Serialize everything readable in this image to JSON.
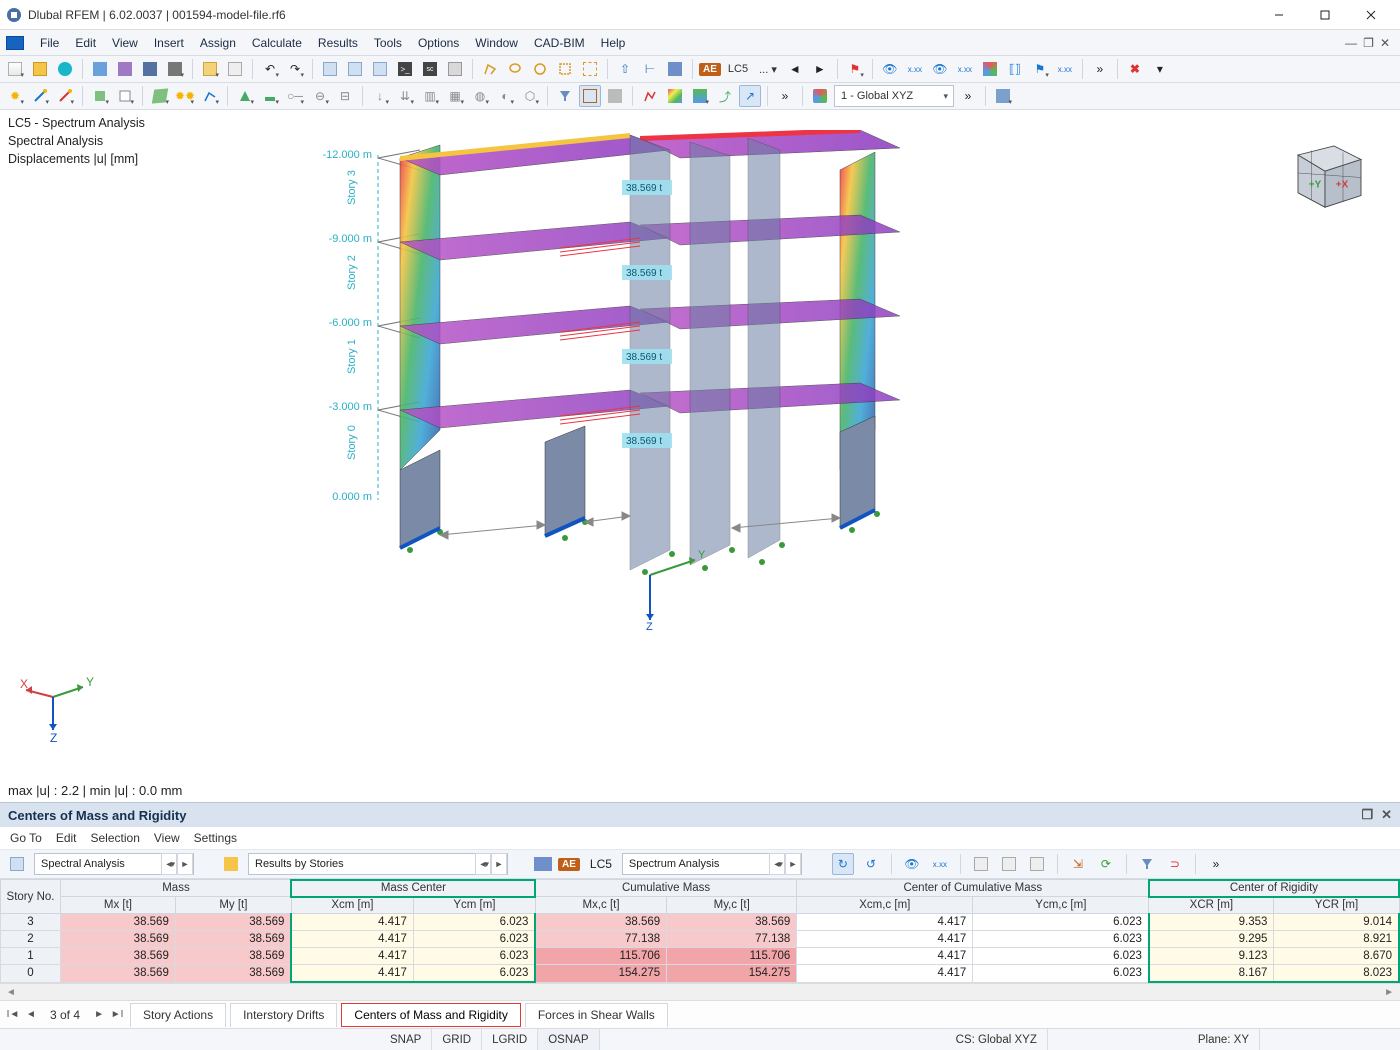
{
  "window": {
    "title": "Dlubal RFEM | 6.02.0037 | 001594-model-file.rf6"
  },
  "menu": [
    "File",
    "Edit",
    "View",
    "Insert",
    "Assign",
    "Calculate",
    "Results",
    "Tools",
    "Options",
    "Window",
    "CAD-BIM",
    "Help"
  ],
  "toolbar2_cs": "1 - Global XYZ",
  "lc_chip_ae": "AE",
  "lc_chip_label": "LC5",
  "lc_chip_dots": "... ▾",
  "viewport": {
    "line1": "LC5 - Spectrum Analysis",
    "line2": "Spectral Analysis",
    "line3": "Displacements |u| [mm]",
    "maxmin": "max |u| : 2.2 | min |u| : 0.0 mm",
    "z_levels": [
      "-12.000 m",
      "-9.000 m",
      "-6.000 m",
      "-3.000 m",
      "0.000 m"
    ],
    "story_labels": [
      "Story 3",
      "Story 2",
      "Story 1",
      "Story 0"
    ],
    "mass_tag": "38.569 t",
    "axis_labels": {
      "x": "X",
      "y": "Y",
      "z": "Z",
      "y2": "Y",
      "z2": "Z"
    },
    "cube_labels": {
      "y": "+Y",
      "x": "+X"
    }
  },
  "panel": {
    "title": "Centers of Mass and Rigidity",
    "menu": [
      "Go To",
      "Edit",
      "Selection",
      "View",
      "Settings"
    ],
    "select1": "Spectral Analysis",
    "select2": "Results by Stories",
    "lc_ae": "AE",
    "lc_label": "LC5",
    "lc_name": "Spectrum Analysis"
  },
  "table": {
    "group_headers": [
      "Story No.",
      "Mass",
      "Mass Center",
      "Cumulative Mass",
      "Center of Cumulative Mass",
      "Center of Rigidity"
    ],
    "sub_headers": [
      "",
      "Mx [t]",
      "My [t]",
      "Xcm [m]",
      "Ycm [m]",
      "Mx,c [t]",
      "My,c [t]",
      "Xcm,c [m]",
      "Ycm,c [m]",
      "XCR [m]",
      "YCR [m]"
    ],
    "rows": [
      {
        "no": "3",
        "mx": "38.569",
        "my": "38.569",
        "xcm": "4.417",
        "ycm": "6.023",
        "mxc": "38.569",
        "myc": "38.569",
        "xcmc": "4.417",
        "ycmc": "6.023",
        "xcr": "9.353",
        "ycr": "9.014"
      },
      {
        "no": "2",
        "mx": "38.569",
        "my": "38.569",
        "xcm": "4.417",
        "ycm": "6.023",
        "mxc": "77.138",
        "myc": "77.138",
        "xcmc": "4.417",
        "ycmc": "6.023",
        "xcr": "9.295",
        "ycr": "8.921"
      },
      {
        "no": "1",
        "mx": "38.569",
        "my": "38.569",
        "xcm": "4.417",
        "ycm": "6.023",
        "mxc": "115.706",
        "myc": "115.706",
        "xcmc": "4.417",
        "ycmc": "6.023",
        "xcr": "9.123",
        "ycr": "8.670"
      },
      {
        "no": "0",
        "mx": "38.569",
        "my": "38.569",
        "xcm": "4.417",
        "ycm": "6.023",
        "mxc": "154.275",
        "myc": "154.275",
        "xcmc": "4.417",
        "ycmc": "6.023",
        "xcr": "8.167",
        "ycr": "8.023"
      }
    ]
  },
  "tabs": {
    "page": "3 of 4",
    "items": [
      "Story Actions",
      "Interstory Drifts",
      "Centers of Mass and Rigidity",
      "Forces in Shear Walls"
    ],
    "active_index": 2
  },
  "status": {
    "snap": "SNAP",
    "grid": "GRID",
    "lgrid": "LGRID",
    "osnap": "OSNAP",
    "cs": "CS: Global XYZ",
    "plane": "Plane: XY"
  },
  "colors": {
    "pink": "#f8c9cb",
    "pink_dark": "#f2a5a9",
    "yellow_hl": "#fffbe6",
    "green_outline": "#00a676",
    "ae_chip": "#c06018",
    "panel_header": "#d8e3ef",
    "menubar_bg": "#f4f6f9"
  }
}
